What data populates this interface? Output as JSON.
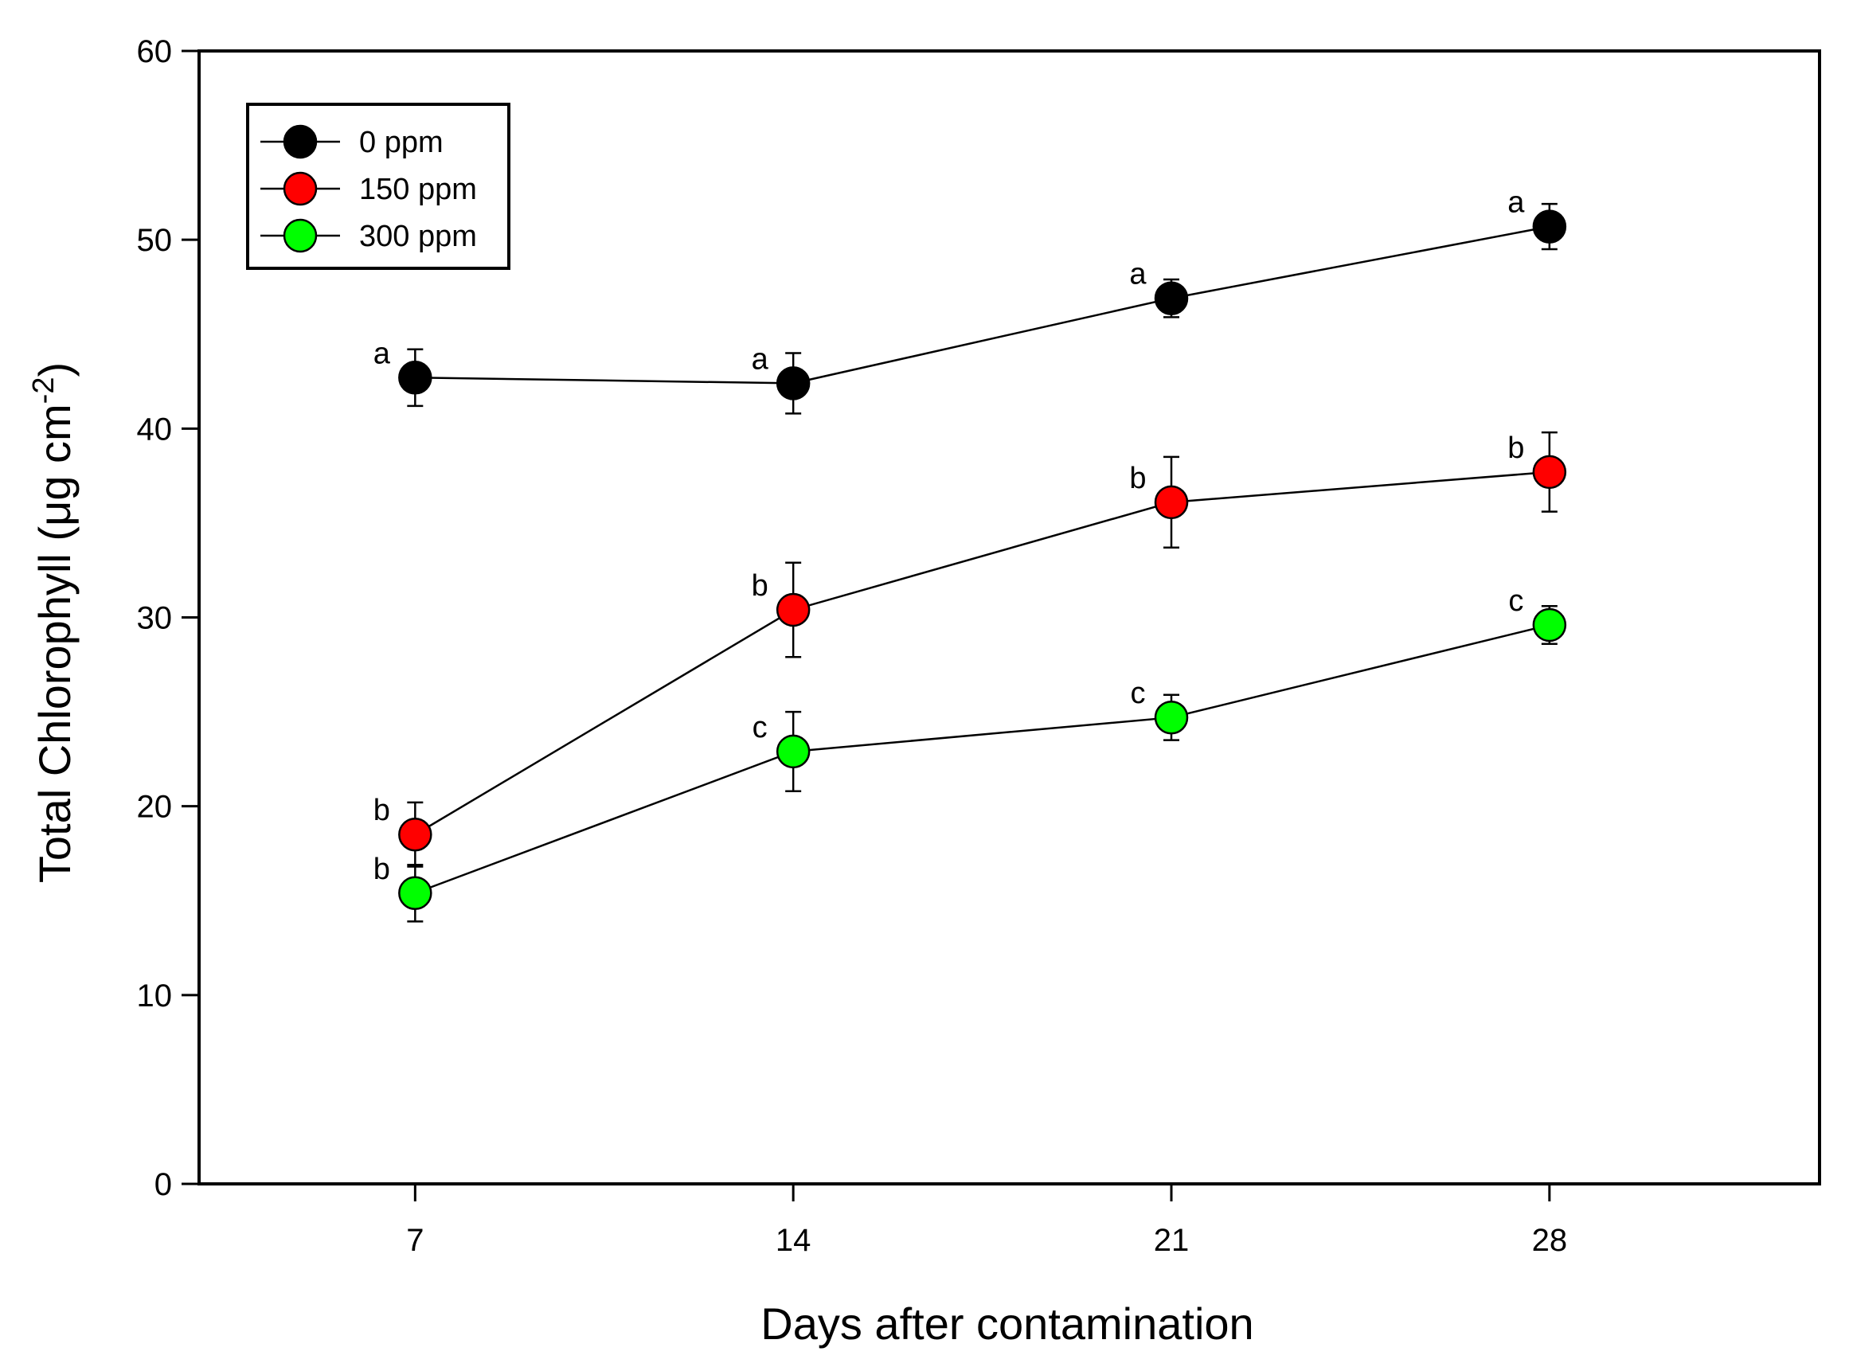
{
  "chart_data": {
    "type": "line",
    "title": "",
    "xlabel": "Days after contamination",
    "ylabel": "Total Chlorophyll (μg cm",
    "ylabel_sup": "-2",
    "ylabel_close": ")",
    "x": [
      7,
      14,
      21,
      28
    ],
    "x_tick_labels": [
      "7",
      "14",
      "21",
      "28"
    ],
    "xlim": [
      3,
      33
    ],
    "ylim": [
      0,
      60
    ],
    "y_ticks": [
      0,
      10,
      20,
      30,
      40,
      50,
      60
    ],
    "y_tick_labels": [
      "0",
      "10",
      "20",
      "30",
      "40",
      "50",
      "60"
    ],
    "grid": false,
    "legend_position": "top-left",
    "series": [
      {
        "name": "0 ppm",
        "color": "#000000",
        "values": [
          42.7,
          42.4,
          46.9,
          50.7
        ],
        "errors": [
          1.5,
          1.6,
          1.0,
          1.2
        ],
        "letters": [
          "a",
          "a",
          "a",
          "a"
        ]
      },
      {
        "name": "150 ppm",
        "color": "#ff0000",
        "values": [
          18.5,
          30.4,
          36.1,
          37.7
        ],
        "errors": [
          1.7,
          2.5,
          2.4,
          2.1
        ],
        "letters": [
          "b",
          "b",
          "b",
          "b"
        ]
      },
      {
        "name": "300 ppm",
        "color": "#00ff00",
        "values": [
          15.4,
          22.9,
          24.7,
          29.6
        ],
        "errors": [
          1.5,
          2.1,
          1.2,
          1.0
        ],
        "letters": [
          "b",
          "c",
          "c",
          "c"
        ]
      }
    ]
  }
}
